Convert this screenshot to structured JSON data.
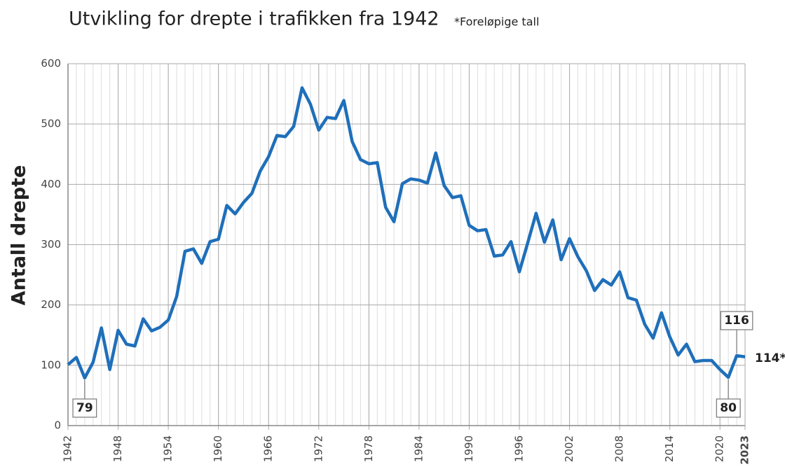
{
  "chart_data": {
    "type": "line",
    "title": "Utvikling for drepte i trafikken fra 1942",
    "subtitle": "*Foreløpige tall",
    "y_label": "Antall drepte",
    "x": [
      1942,
      1943,
      1944,
      1945,
      1946,
      1947,
      1948,
      1949,
      1950,
      1951,
      1952,
      1953,
      1954,
      1955,
      1956,
      1957,
      1958,
      1959,
      1960,
      1961,
      1962,
      1963,
      1964,
      1965,
      1966,
      1967,
      1968,
      1969,
      1970,
      1971,
      1972,
      1973,
      1974,
      1975,
      1976,
      1977,
      1978,
      1979,
      1980,
      1981,
      1982,
      1983,
      1984,
      1985,
      1986,
      1987,
      1988,
      1989,
      1990,
      1991,
      1992,
      1993,
      1994,
      1995,
      1996,
      1997,
      1998,
      1999,
      2000,
      2001,
      2002,
      2003,
      2004,
      2005,
      2006,
      2007,
      2008,
      2009,
      2010,
      2011,
      2012,
      2013,
      2014,
      2015,
      2016,
      2017,
      2018,
      2019,
      2020,
      2021,
      2022,
      2023
    ],
    "series": [
      {
        "name": "Drepte",
        "color": "#1f6fba",
        "values": [
          101,
          113,
          79,
          105,
          162,
          93,
          158,
          135,
          132,
          177,
          157,
          163,
          175,
          214,
          289,
          293,
          269,
          305,
          309,
          365,
          351,
          370,
          385,
          422,
          446,
          481,
          479,
          496,
          560,
          533,
          490,
          511,
          509,
          539,
          471,
          441,
          434,
          436,
          362,
          338,
          401,
          409,
          407,
          402,
          452,
          398,
          378,
          381,
          332,
          323,
          325,
          281,
          283,
          305,
          255,
          303,
          352,
          304,
          341,
          275,
          310,
          280,
          257,
          224,
          242,
          233,
          255,
          212,
          208,
          168,
          145,
          187,
          147,
          117,
          135,
          106,
          108,
          108,
          93,
          80,
          116,
          114
        ],
        "value_labels": [
          null,
          null,
          "79",
          null,
          null,
          null,
          null,
          null,
          null,
          null,
          null,
          null,
          null,
          null,
          null,
          null,
          null,
          null,
          null,
          null,
          null,
          null,
          null,
          null,
          null,
          null,
          null,
          null,
          null,
          null,
          null,
          null,
          null,
          null,
          null,
          null,
          null,
          null,
          null,
          null,
          null,
          null,
          null,
          null,
          null,
          null,
          null,
          null,
          null,
          null,
          null,
          null,
          null,
          null,
          null,
          null,
          null,
          null,
          null,
          null,
          null,
          null,
          null,
          null,
          null,
          null,
          null,
          null,
          null,
          null,
          null,
          null,
          null,
          null,
          null,
          null,
          null,
          null,
          null,
          "80",
          "116",
          "114*"
        ]
      }
    ],
    "xlim": [
      1942,
      2023
    ],
    "xticks": [
      1942,
      1948,
      1954,
      1960,
      1966,
      1972,
      1978,
      1984,
      1990,
      1996,
      2002,
      2008,
      2014,
      2020,
      2023
    ],
    "ylim": [
      0,
      600
    ],
    "yticks": [
      0,
      100,
      200,
      300,
      400,
      500,
      600
    ],
    "grid": true
  }
}
